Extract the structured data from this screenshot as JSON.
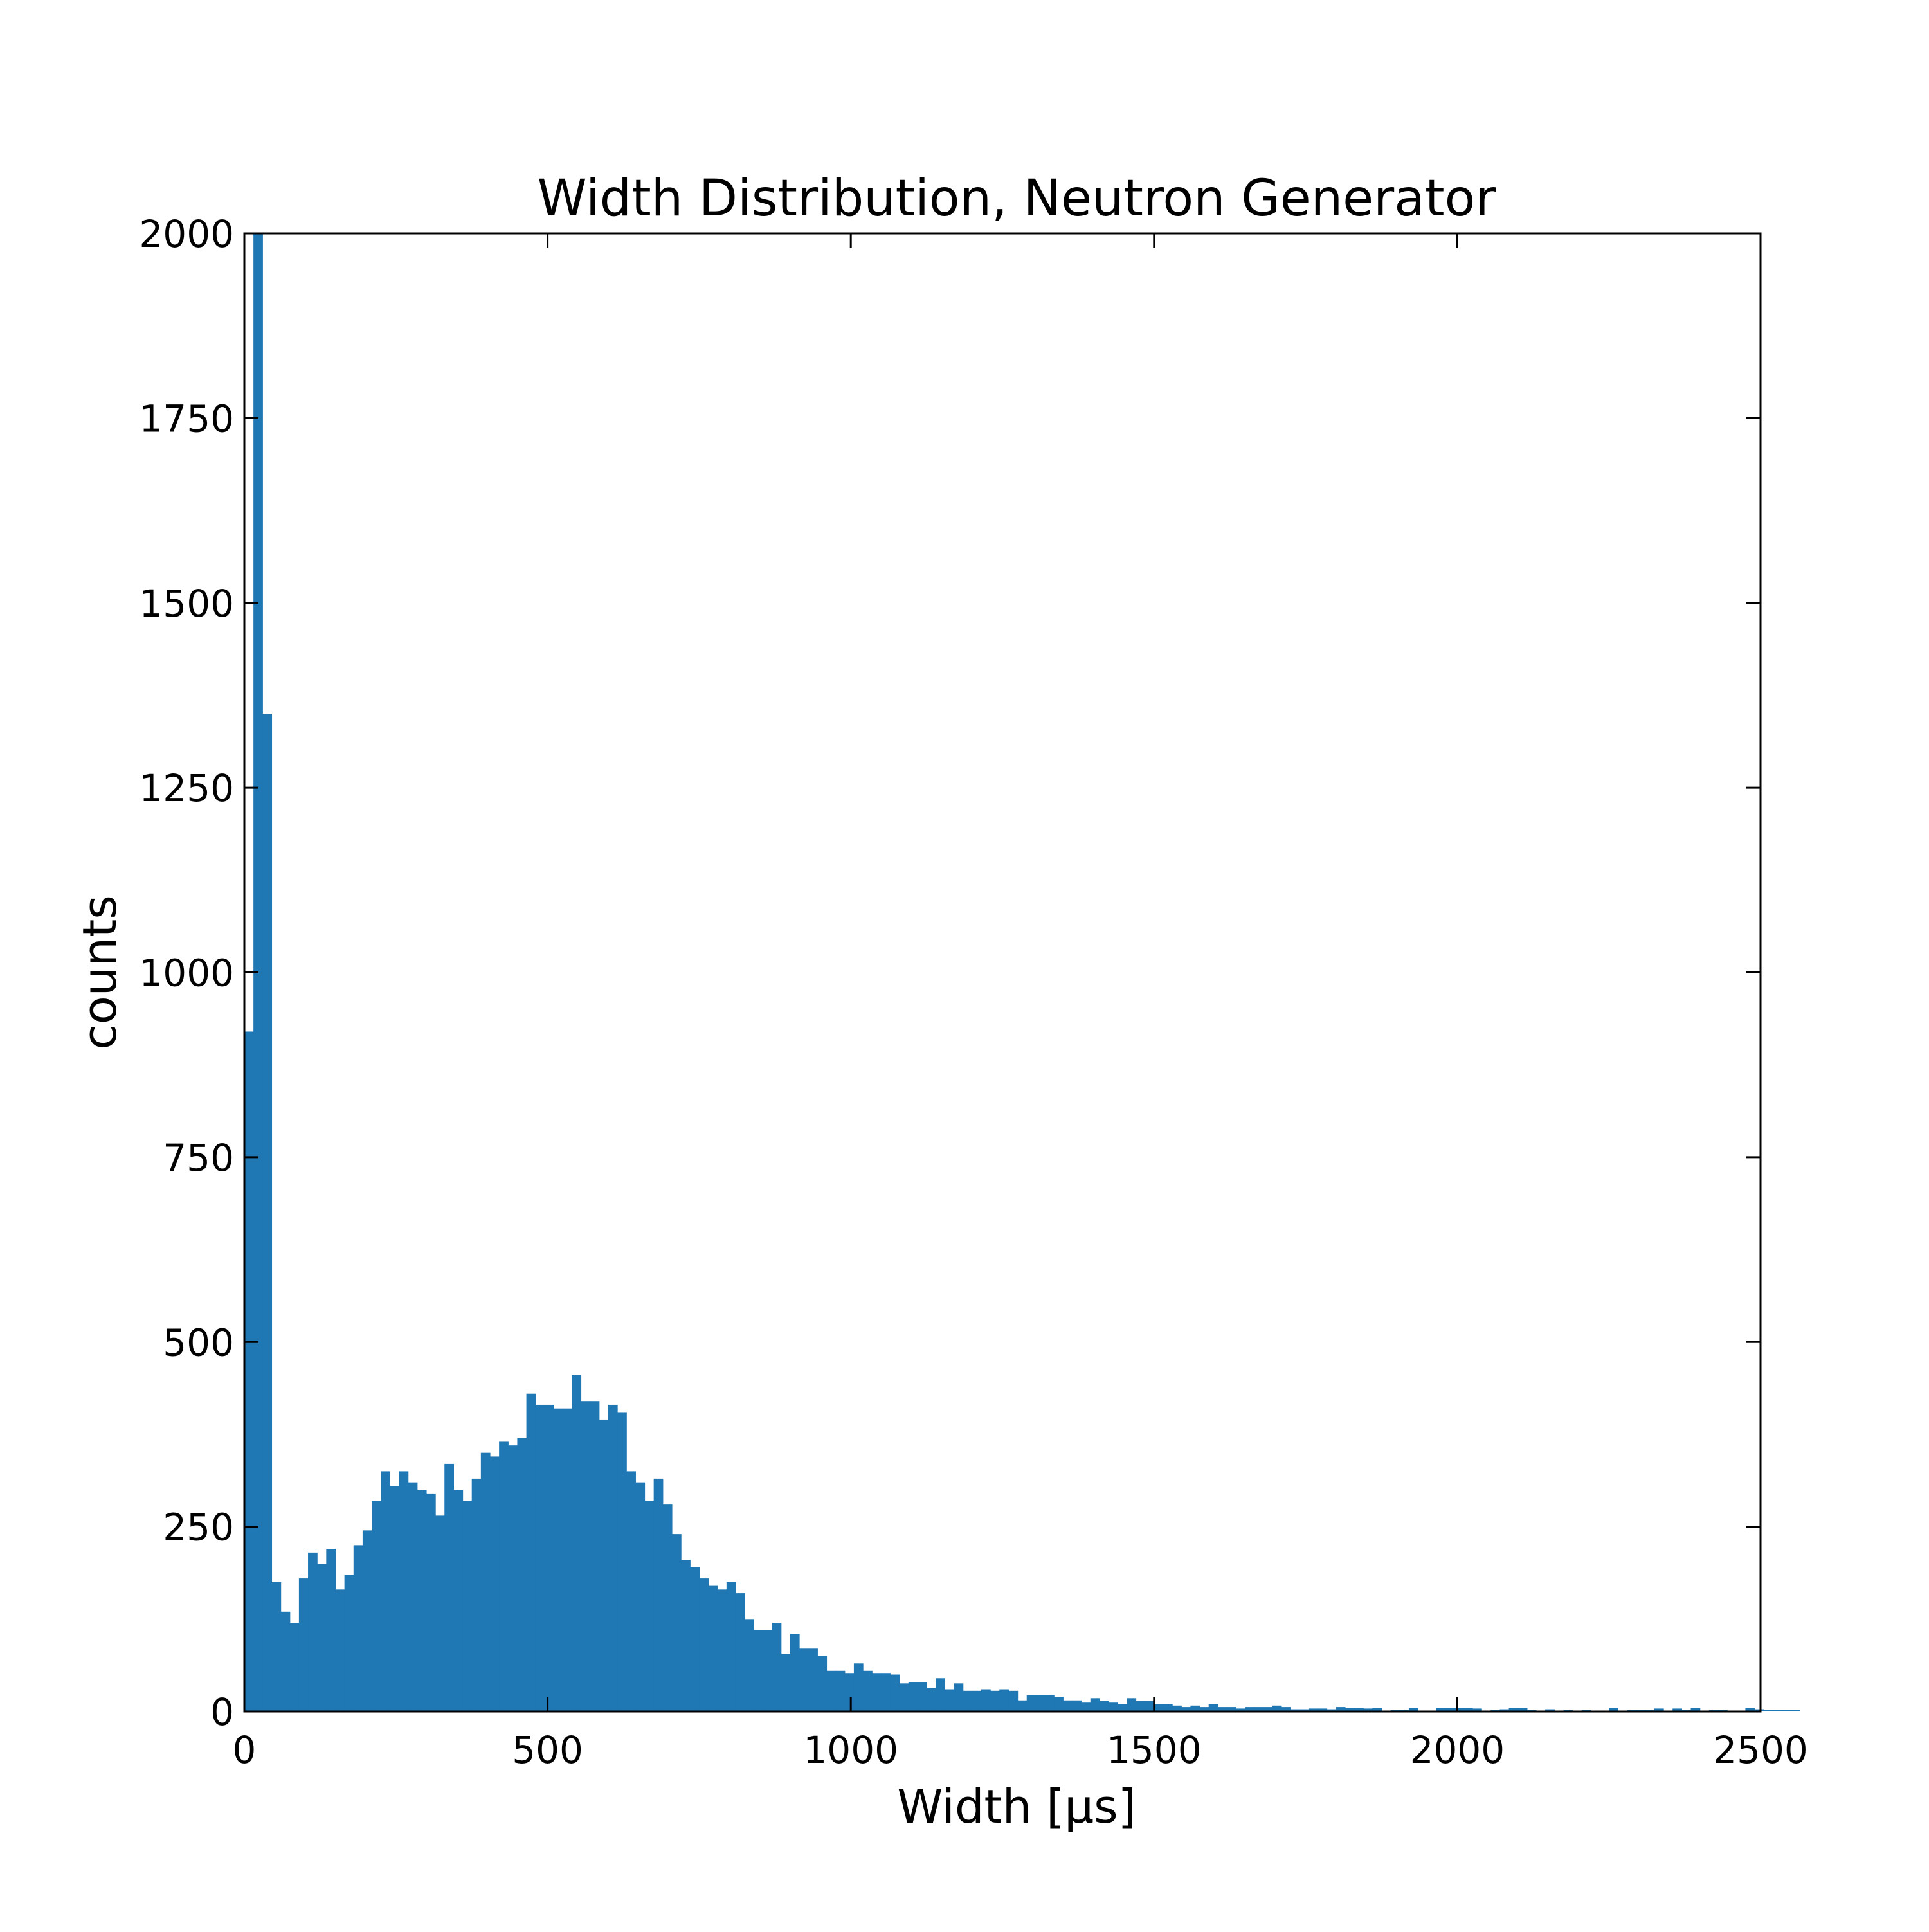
{
  "chart_data": {
    "type": "bar",
    "title": "Width Distribution, Neutron Generator",
    "xlabel": "Width [µs]",
    "ylabel": "counts",
    "xlim": [
      0,
      2500
    ],
    "ylim": [
      0,
      2000
    ],
    "xticks": [
      "0",
      "500",
      "1000",
      "1500",
      "2000",
      "2500"
    ],
    "yticks": [
      "0",
      "250",
      "500",
      "750",
      "1000",
      "1250",
      "1500",
      "1750",
      "2000"
    ],
    "grid": false,
    "legend": "none",
    "bar_color": "#1f77b4",
    "bin_width": 15,
    "bin_start": 0,
    "values": [
      920,
      2000,
      1350,
      175,
      135,
      120,
      180,
      215,
      200,
      220,
      165,
      185,
      225,
      245,
      285,
      325,
      305,
      325,
      310,
      300,
      295,
      265,
      335,
      300,
      285,
      315,
      350,
      345,
      365,
      360,
      370,
      430,
      415,
      415,
      410,
      410,
      455,
      420,
      420,
      395,
      415,
      405,
      325,
      310,
      285,
      315,
      280,
      240,
      205,
      195,
      180,
      170,
      165,
      175,
      160,
      125,
      110,
      110,
      120,
      78,
      105,
      85,
      85,
      75,
      55,
      55,
      52,
      65,
      55,
      52,
      52,
      50,
      38,
      40,
      40,
      32,
      45,
      30,
      38,
      28,
      28,
      30,
      28,
      30,
      28,
      15,
      22,
      22,
      22,
      20,
      15,
      15,
      12,
      18,
      14,
      12,
      10,
      18,
      14,
      14,
      10,
      10,
      8,
      6,
      8,
      6,
      10,
      6,
      6,
      4,
      6,
      6,
      6,
      8,
      6,
      3,
      3,
      4,
      4,
      3,
      6,
      5,
      5,
      4,
      5,
      0,
      2,
      2,
      5,
      0,
      0,
      5,
      5,
      5,
      5,
      4,
      0,
      2,
      3,
      5,
      5,
      2,
      0,
      3,
      0,
      2,
      0,
      2,
      0,
      0,
      5,
      0,
      2,
      2,
      2,
      4,
      0,
      4,
      2,
      5,
      0,
      2,
      2,
      0,
      0,
      5,
      3,
      2,
      2,
      2,
      2
    ]
  }
}
